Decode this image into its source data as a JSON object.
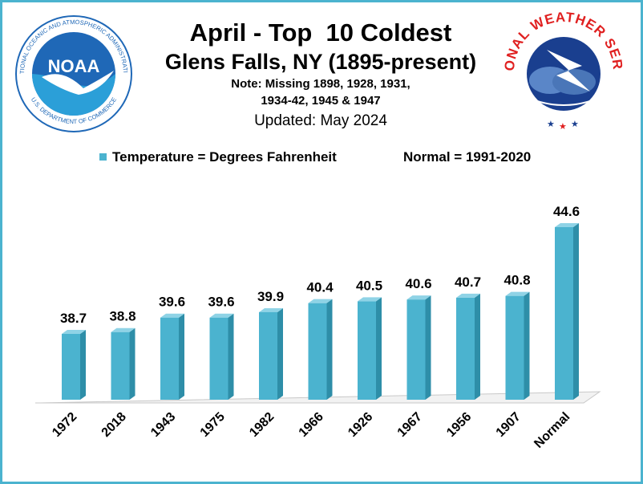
{
  "header": {
    "title": "April - Top  10 Coldest",
    "subtitle": "Glens Falls, NY (1895-present)",
    "note_line1": "Note: Missing 1898, 1928, 1931,",
    "note_line2": "1934-42, 1945 & 1947",
    "updated": "Updated: May 2024"
  },
  "legend": {
    "series_label": "Temperature = Degrees Fahrenheit",
    "normal_label": "Normal = 1991-2020"
  },
  "logos": {
    "noaa_text": "NOAA",
    "noaa_ring": "NATIONAL OCEANIC AND ATMOSPHERIC ADMINISTRATION",
    "noaa_bottom": "U.S. DEPARTMENT OF COMMERCE",
    "nws_text": "NATIONAL WEATHER SERVICE"
  },
  "colors": {
    "bar_front": "#4bb3cf",
    "bar_side": "#2e8ea8",
    "bar_top": "#8fd3e6",
    "border": "#4bb3cf",
    "noaa_blue": "#1f68b7",
    "nws_red": "#e02020"
  },
  "chart_data": {
    "type": "bar",
    "categories": [
      "1972",
      "2018",
      "1943",
      "1975",
      "1982",
      "1966",
      "1926",
      "1967",
      "1956",
      "1907",
      "Normal"
    ],
    "values": [
      38.7,
      38.8,
      39.6,
      39.6,
      39.9,
      40.4,
      40.5,
      40.6,
      40.7,
      40.8,
      44.6
    ],
    "data_labels": [
      "38.7",
      "38.8",
      "39.6",
      "39.6",
      "39.9",
      "40.4",
      "40.5",
      "40.6",
      "40.7",
      "40.8",
      "44.6"
    ],
    "title": "April - Top  10 Coldest",
    "ylabel": "",
    "xlabel": "",
    "ylim": [
      35,
      46
    ],
    "grid": false,
    "legend_position": "top"
  }
}
